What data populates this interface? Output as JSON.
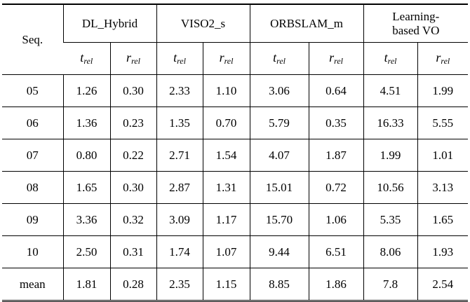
{
  "table": {
    "seq_header": "Seq.",
    "methods": [
      {
        "line1": "DL_Hybrid",
        "line2": ""
      },
      {
        "line1": "VISO2_s",
        "line2": ""
      },
      {
        "line1": "ORBSLAM_m",
        "line2": ""
      },
      {
        "line1": "Learning-",
        "line2": "based VO"
      }
    ],
    "metric_t": {
      "base": "t",
      "sub": "rel"
    },
    "metric_r": {
      "base": "r",
      "sub": "rel"
    },
    "rows": [
      {
        "seq": "05",
        "values": [
          "1.26",
          "0.30",
          "2.33",
          "1.10",
          "3.06",
          "0.64",
          "4.51",
          "1.99"
        ]
      },
      {
        "seq": "06",
        "values": [
          "1.36",
          "0.23",
          "1.35",
          "0.70",
          "5.79",
          "0.35",
          "16.33",
          "5.55"
        ]
      },
      {
        "seq": "07",
        "values": [
          "0.80",
          "0.22",
          "2.71",
          "1.54",
          "4.07",
          "1.87",
          "1.99",
          "1.01"
        ]
      },
      {
        "seq": "08",
        "values": [
          "1.65",
          "0.30",
          "2.87",
          "1.31",
          "15.01",
          "0.72",
          "10.56",
          "3.13"
        ]
      },
      {
        "seq": "09",
        "values": [
          "3.36",
          "0.32",
          "3.09",
          "1.17",
          "15.70",
          "1.06",
          "5.35",
          "1.65"
        ]
      },
      {
        "seq": "10",
        "values": [
          "2.50",
          "0.31",
          "1.74",
          "1.07",
          "9.44",
          "6.51",
          "8.06",
          "1.93"
        ]
      },
      {
        "seq": "mean",
        "values": [
          "1.81",
          "0.28",
          "2.35",
          "1.15",
          "8.85",
          "1.86",
          "7.8",
          "2.54"
        ]
      }
    ]
  }
}
